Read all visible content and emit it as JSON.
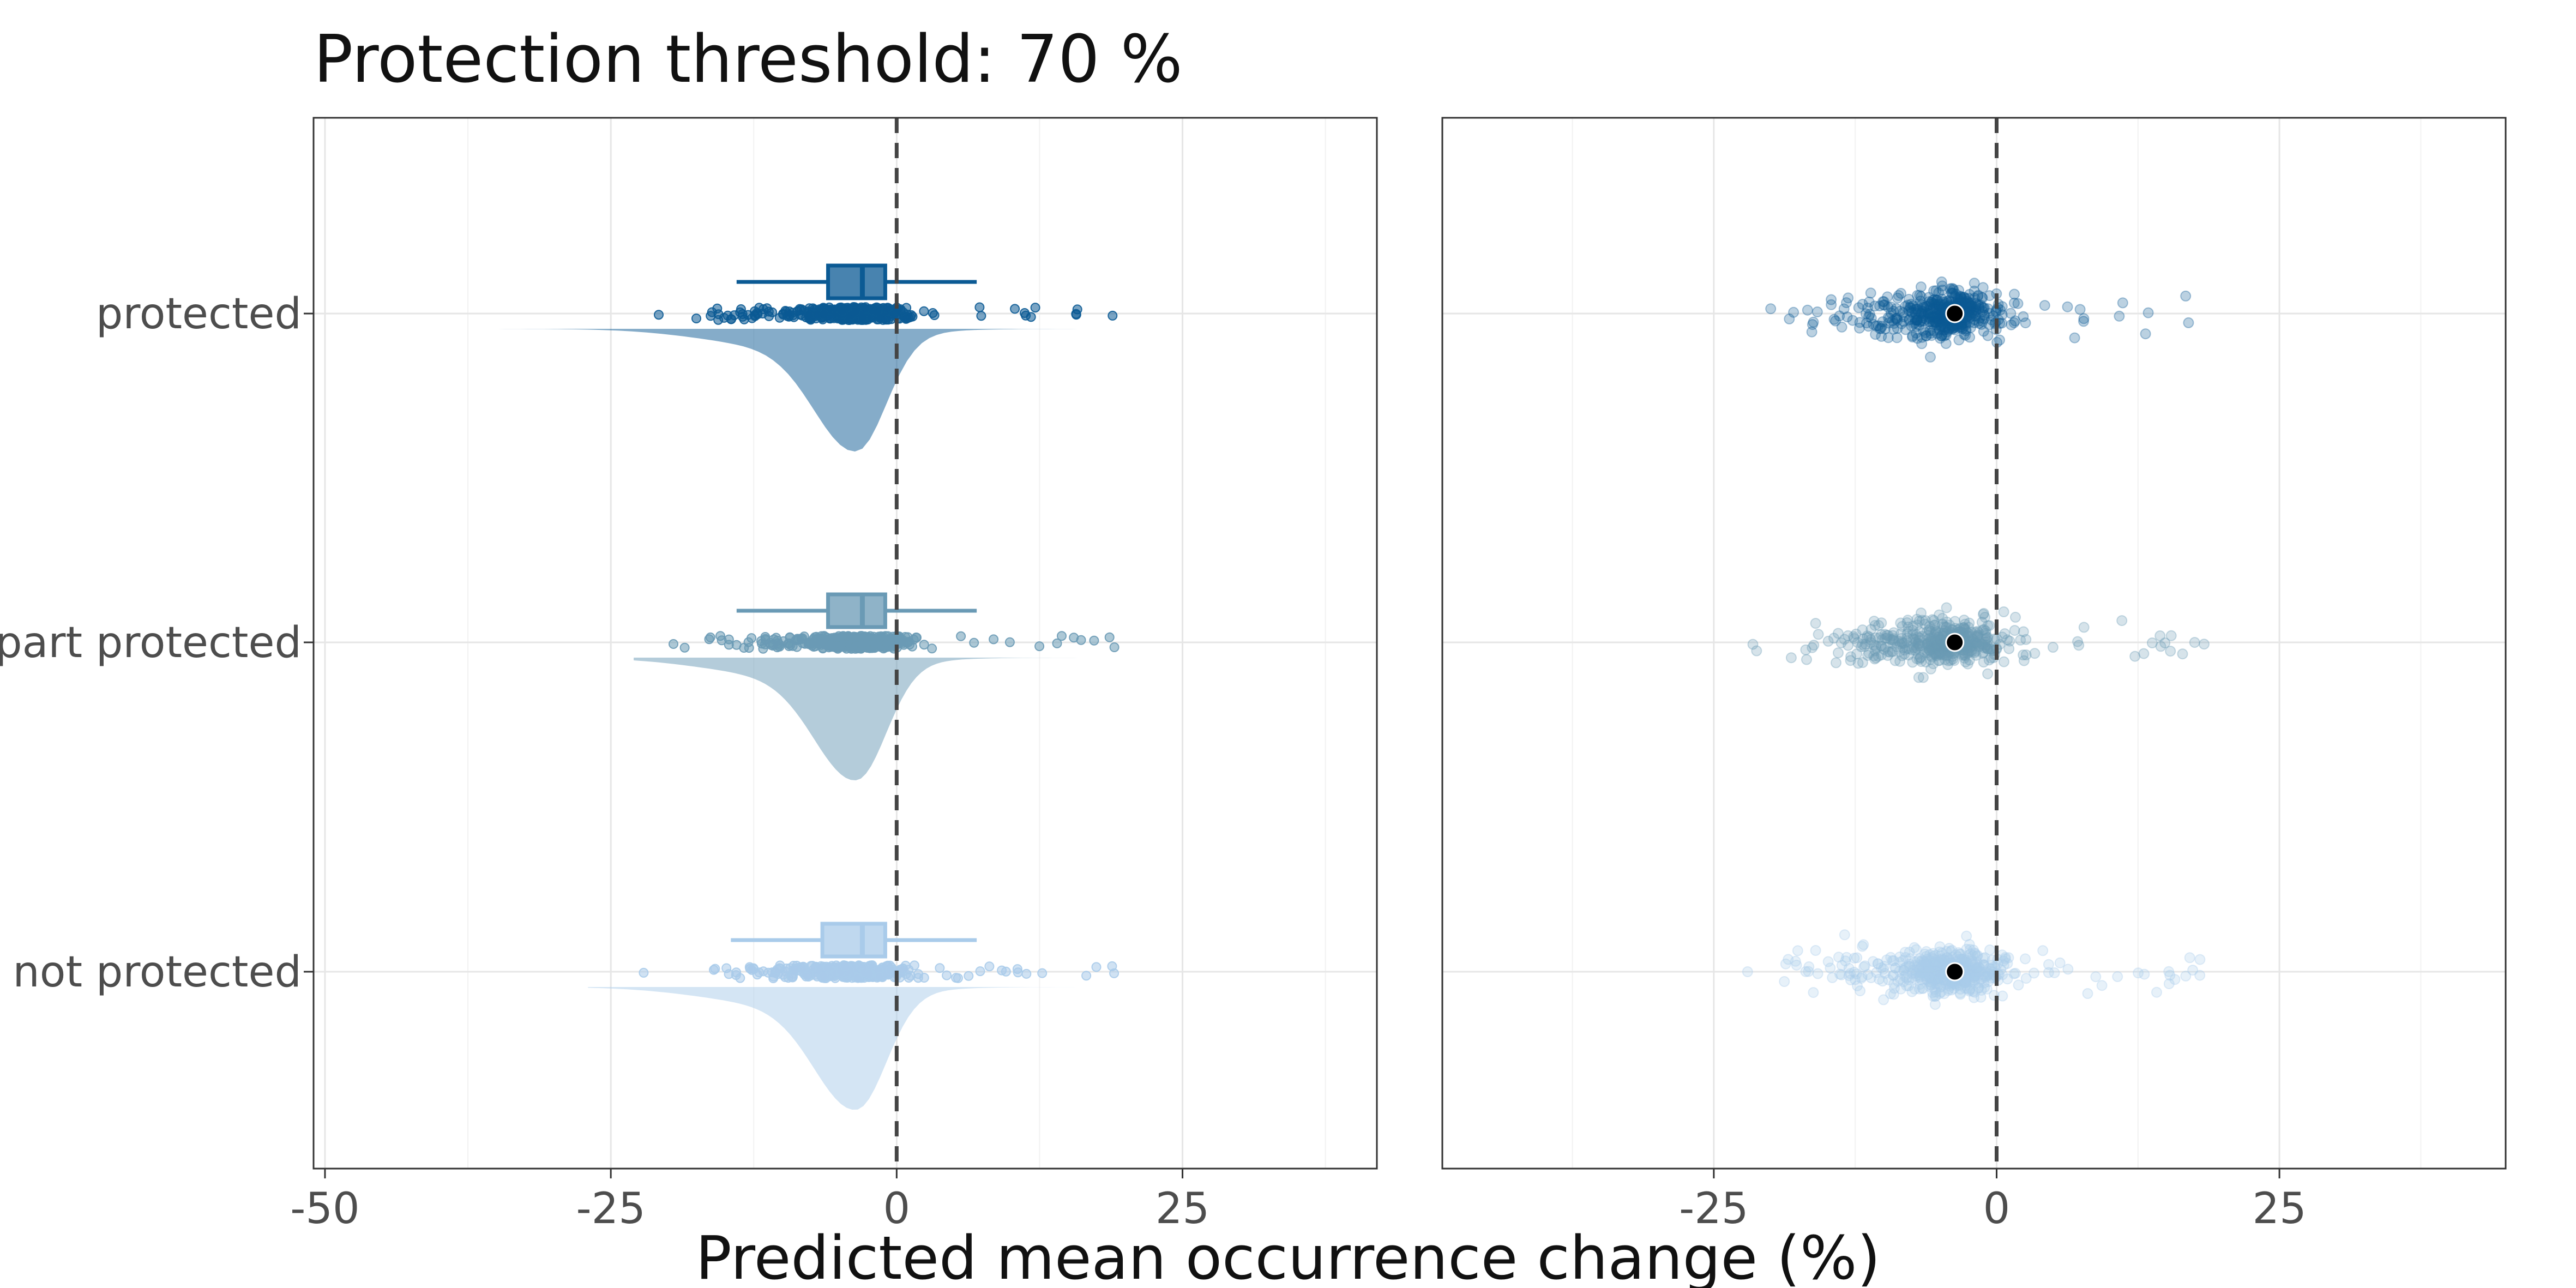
{
  "chart_data": {
    "type": "raincloud",
    "title": "Protection threshold: 70 %",
    "xlabel": "Predicted mean occurrence change (%)",
    "ylabel": "",
    "categories": [
      "protected",
      "part protected",
      "not protected"
    ],
    "colors": {
      "protected": "#0b5a94",
      "part protected": "#6a9ab5",
      "not protected": "#a9cbea"
    },
    "panels": [
      {
        "xlim": [
          -51,
          42
        ],
        "xticks": [
          -50,
          -25,
          0,
          25
        ],
        "xtick_labels": [
          "-50",
          "-25",
          "0",
          "25"
        ],
        "reference_line_x": 0,
        "boxplots": [
          {
            "name": "protected",
            "whisker_low": -14,
            "q1": -6,
            "median": -3,
            "q3": -1,
            "whisker_high": 7
          },
          {
            "name": "part protected",
            "whisker_low": -14,
            "q1": -6,
            "median": -3,
            "q3": -1,
            "whisker_high": 7
          },
          {
            "name": "not protected",
            "whisker_low": -14.5,
            "q1": -6.5,
            "median": -3,
            "q3": -1,
            "whisker_high": 7
          }
        ]
      },
      {
        "xlim": [
          -49,
          45
        ],
        "xticks": [
          -25,
          0,
          25
        ],
        "xtick_labels": [
          "-25",
          "0",
          "25"
        ],
        "reference_line_x": 0,
        "means": [
          {
            "name": "protected",
            "mean": -3.7
          },
          {
            "name": "part protected",
            "mean": -3.7
          },
          {
            "name": "not protected",
            "mean": -3.7
          }
        ]
      }
    ],
    "grid": true,
    "legend": "none"
  }
}
